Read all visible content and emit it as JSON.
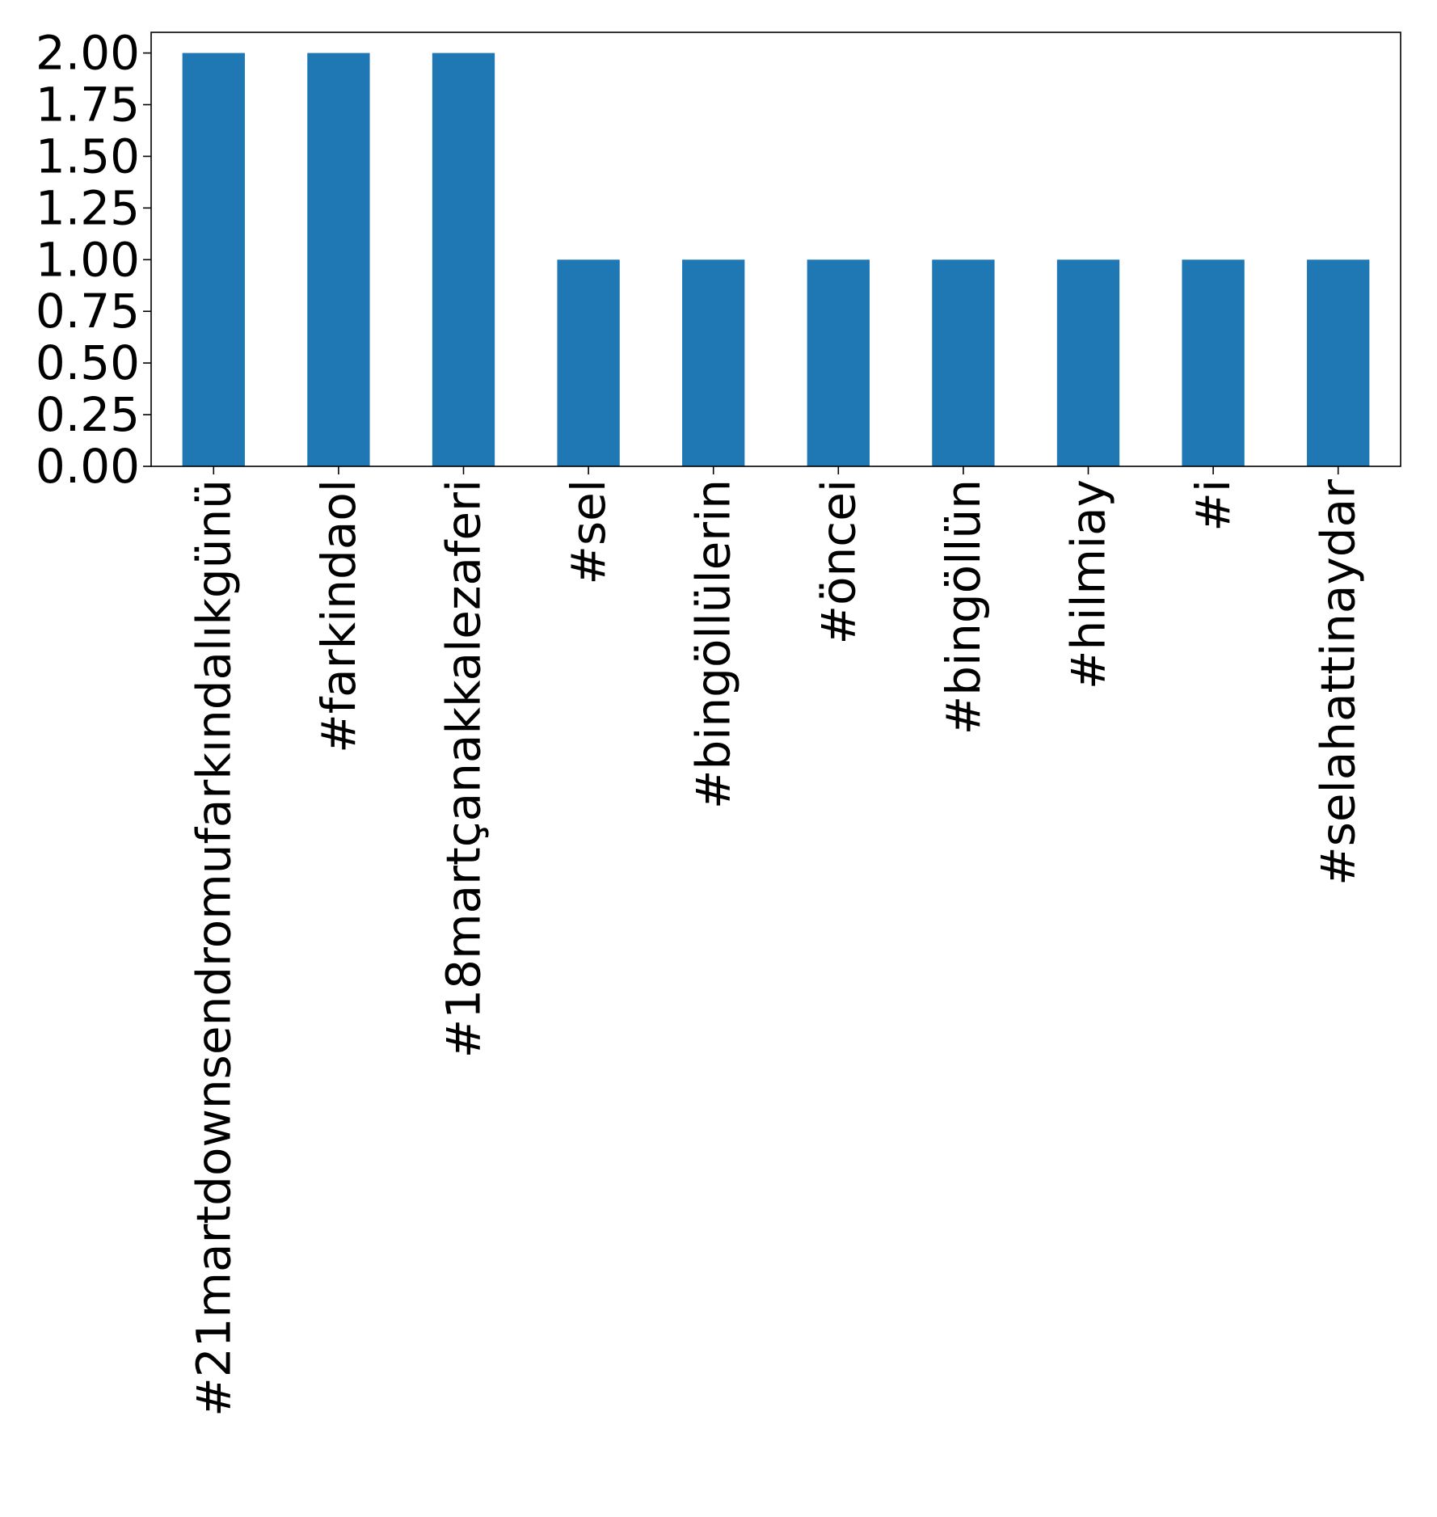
{
  "chart_data": {
    "type": "bar",
    "title": "",
    "xlabel": "",
    "ylabel": "",
    "categories": [
      "#21martdownsendromufarkındalıkgünü",
      "#farkindaol",
      "#18martçanakkalezaferi",
      "#sel",
      "#bingöllülerin",
      "#öncei",
      "#bingöllün",
      "#hilmiay",
      "#i",
      "#selahattinaydar"
    ],
    "values": [
      2,
      2,
      2,
      1,
      1,
      1,
      1,
      1,
      1,
      1
    ],
    "ylim": [
      0,
      2.1
    ],
    "yticks": [
      0.0,
      0.25,
      0.5,
      0.75,
      1.0,
      1.25,
      1.5,
      1.75,
      2.0
    ],
    "ytick_labels": [
      "0.00",
      "0.25",
      "0.50",
      "0.75",
      "1.00",
      "1.25",
      "1.50",
      "1.75",
      "2.00"
    ],
    "bar_color": "#1f77b4",
    "grid": false,
    "legend": "none"
  }
}
